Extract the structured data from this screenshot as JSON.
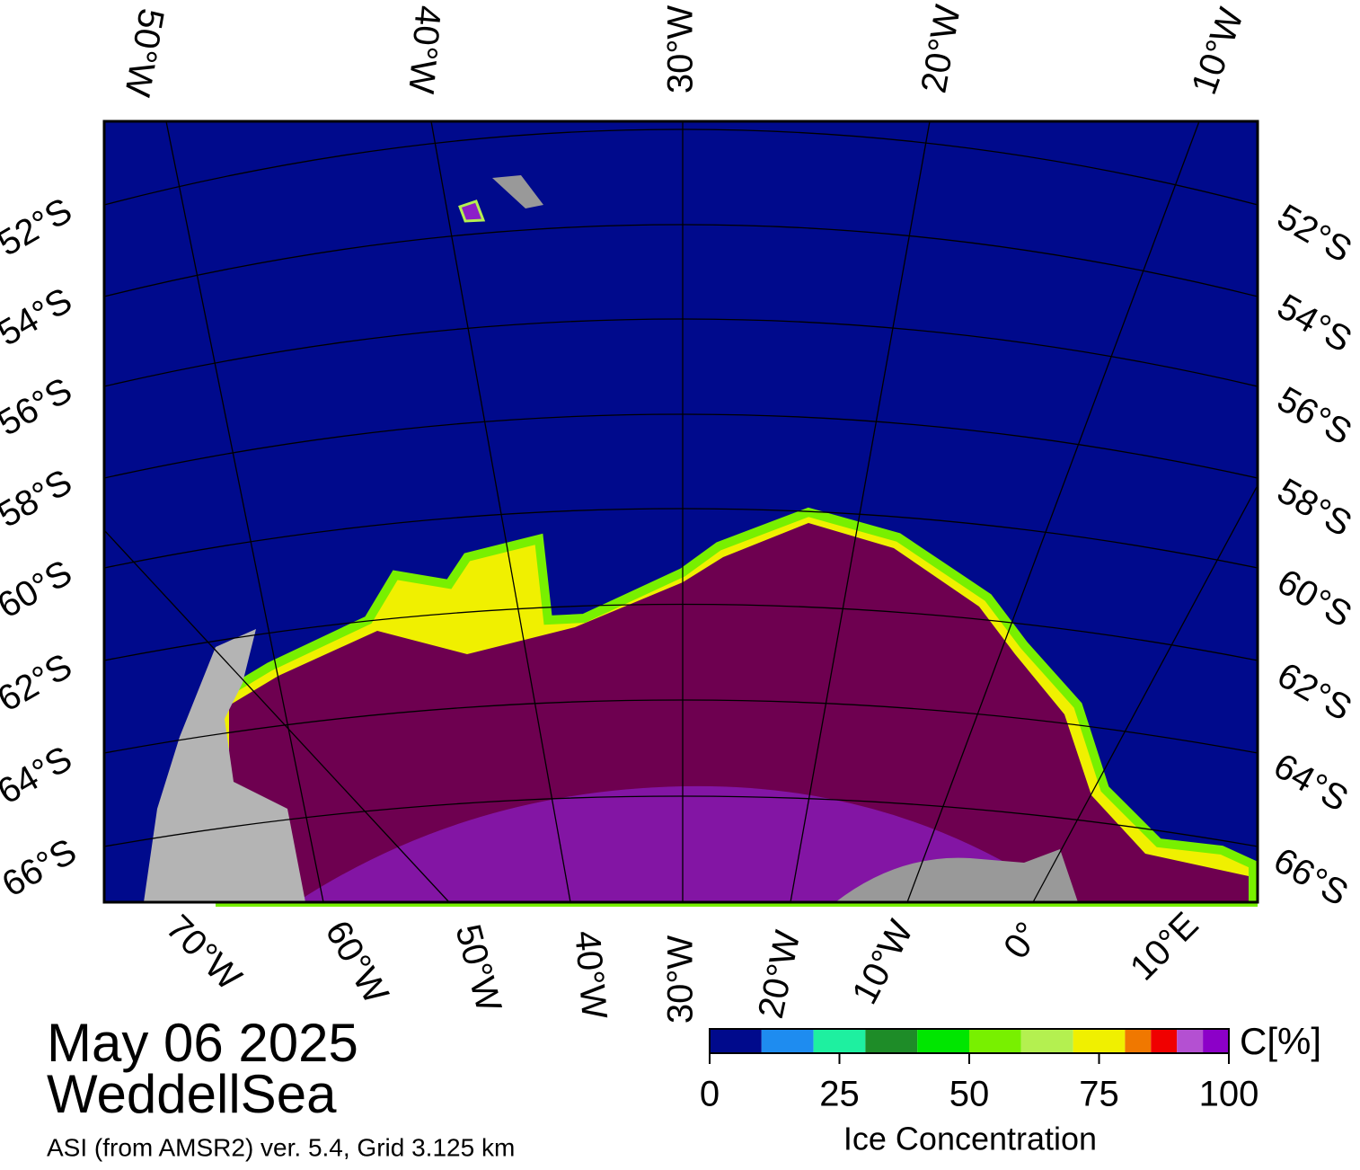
{
  "map": {
    "top_lon_labels": [
      "50°W",
      "40°W",
      "30°W",
      "20°W",
      "10°W"
    ],
    "left_lat_labels": [
      "52°S",
      "54°S",
      "56°S",
      "58°S",
      "60°S",
      "62°S",
      "64°S",
      "66°S"
    ],
    "right_lat_labels": [
      "52°S",
      "54°S",
      "56°S",
      "58°S",
      "60°S",
      "62°S",
      "64°S",
      "66°S"
    ],
    "bottom_lon_labels": [
      "70°W",
      "60°W",
      "50°W",
      "40°W",
      "30°W",
      "20°W",
      "10°W",
      "0°",
      "10°E"
    ]
  },
  "date": "May 06 2025",
  "region": "WeddellSea",
  "source": "ASI (from AMSR2) ver. 5.4,  Grid 3.125 km",
  "colorbar": {
    "unit": "C[%]",
    "label": "Ice Concentration",
    "lim": [
      0,
      100
    ],
    "ticks": [
      0,
      25,
      50,
      75,
      100
    ],
    "bounds": [
      0,
      10,
      20,
      30,
      40,
      50,
      60,
      70,
      80,
      85,
      90,
      95,
      100
    ],
    "colors": [
      "#000a8c",
      "#1e8cf0",
      "#1ef0a0",
      "#1e8c28",
      "#00e600",
      "#78f000",
      "#b4f050",
      "#f0f000",
      "#f07800",
      "#f00000",
      "#b450d2",
      "#8c00c8"
    ]
  }
}
